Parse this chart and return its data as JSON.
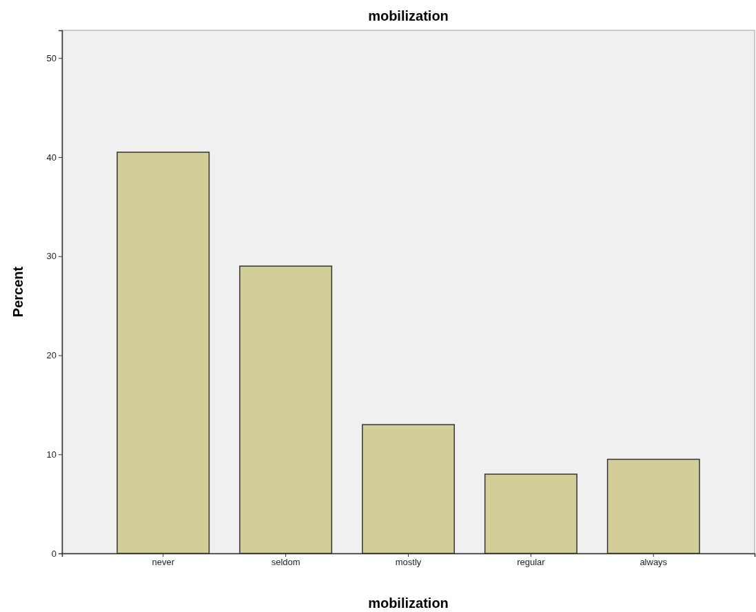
{
  "chart_data": {
    "type": "bar",
    "title": "mobilization",
    "xlabel": "mobilization",
    "ylabel": "Percent",
    "categories": [
      "never",
      "seldom",
      "mostly",
      "regular",
      "always"
    ],
    "values": [
      40.5,
      29.0,
      13.0,
      8.0,
      9.5
    ],
    "color": "#d3ce97",
    "ylim": [
      0,
      52.8
    ],
    "yticks": [
      0,
      10,
      20,
      30,
      40,
      50
    ],
    "grid": false
  }
}
